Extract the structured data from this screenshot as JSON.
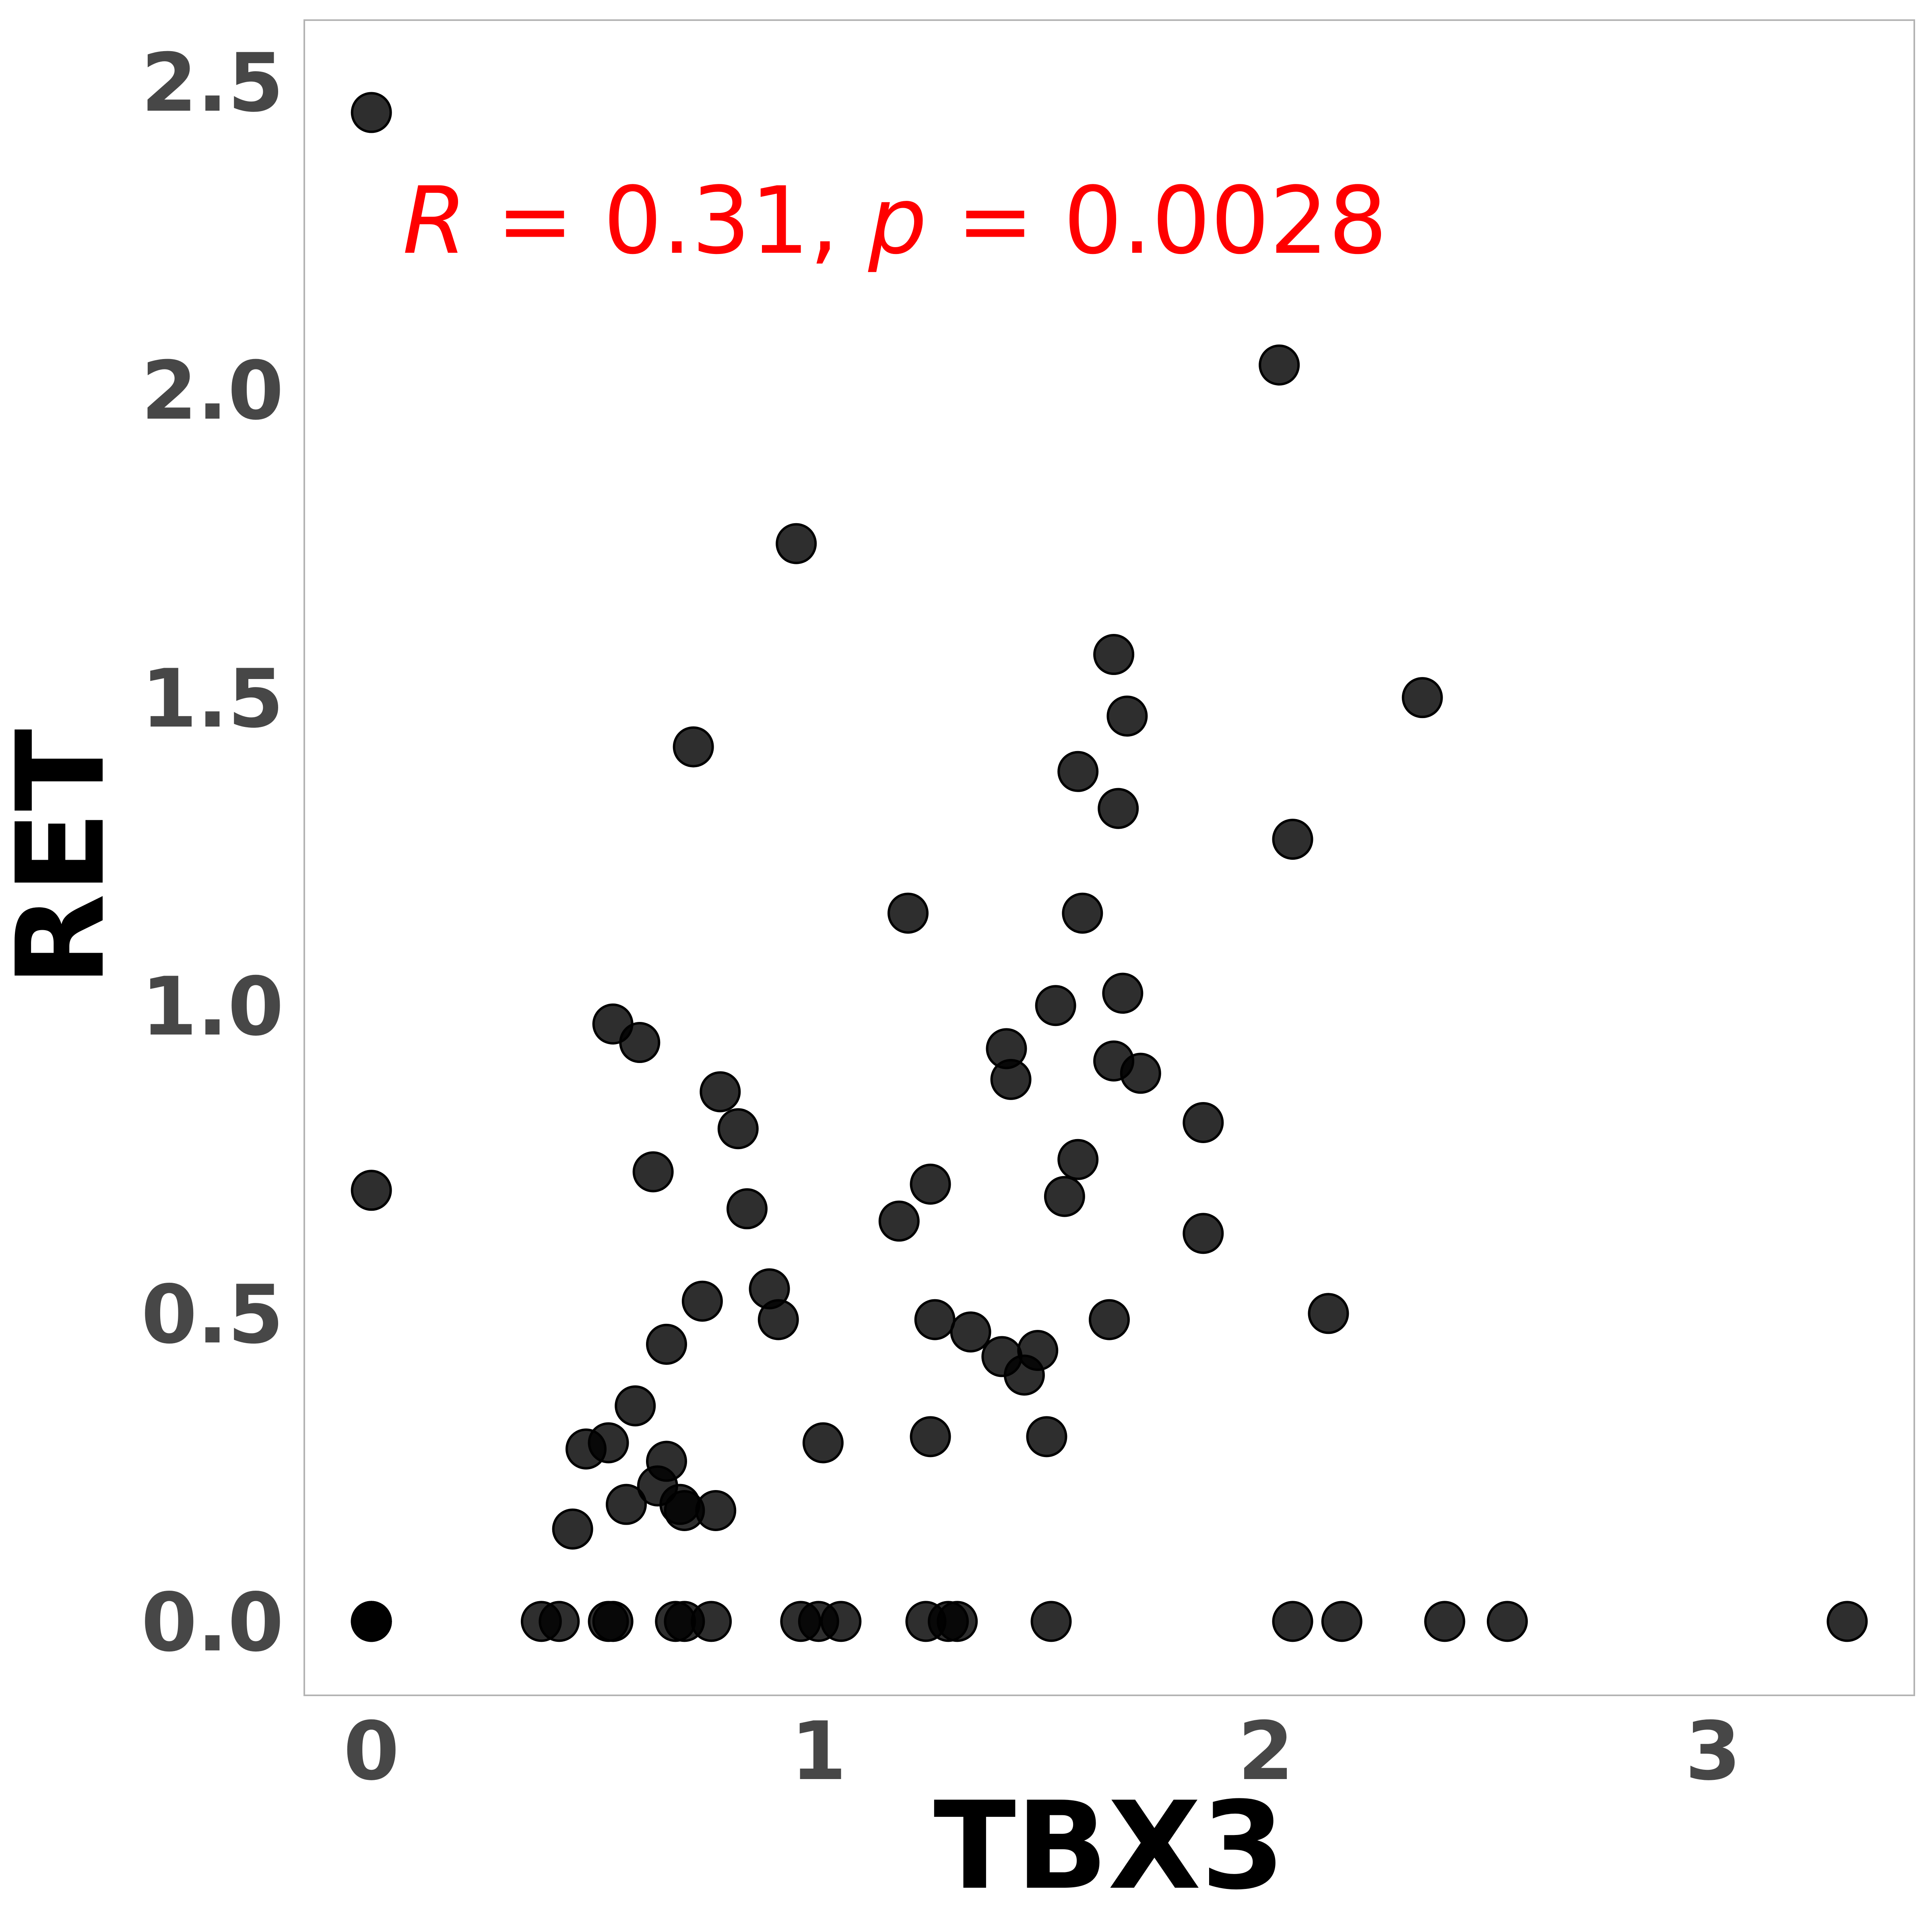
{
  "chart_data": {
    "type": "scatter",
    "xlabel": "TBX3",
    "ylabel": "RET",
    "xlim": [
      -0.15,
      3.45
    ],
    "ylim": [
      -0.12,
      2.6
    ],
    "x_ticks": [
      "0",
      "1",
      "2",
      "3"
    ],
    "y_ticks": [
      "0.0",
      "0.5",
      "1.0",
      "1.5",
      "2.0",
      "2.5"
    ],
    "grid": false,
    "legend": "none",
    "point_color": "#000000",
    "annotation": {
      "r_symbol": "R",
      "r_value": " = 0.31, ",
      "p_symbol": "p",
      "p_value": " = 0.0028",
      "color": "#ff0000"
    },
    "points": [
      [
        0.0,
        2.45
      ],
      [
        0.0,
        0.7
      ],
      [
        0.0,
        0.0
      ],
      [
        0.0,
        0.0
      ],
      [
        0.0,
        0.0
      ],
      [
        0.38,
        0.0
      ],
      [
        0.42,
        0.0
      ],
      [
        0.53,
        0.0
      ],
      [
        0.54,
        0.0
      ],
      [
        0.68,
        0.0
      ],
      [
        0.7,
        0.0
      ],
      [
        0.76,
        0.0
      ],
      [
        0.96,
        0.0
      ],
      [
        1.0,
        0.0
      ],
      [
        1.05,
        0.0
      ],
      [
        1.24,
        0.0
      ],
      [
        1.29,
        0.0
      ],
      [
        1.31,
        0.0
      ],
      [
        1.52,
        0.0
      ],
      [
        2.06,
        0.0
      ],
      [
        2.17,
        0.0
      ],
      [
        2.4,
        0.0
      ],
      [
        2.54,
        0.0
      ],
      [
        3.3,
        0.0
      ],
      [
        0.45,
        0.15
      ],
      [
        0.48,
        0.28
      ],
      [
        0.53,
        0.29
      ],
      [
        0.57,
        0.19
      ],
      [
        0.59,
        0.35
      ],
      [
        0.64,
        0.22
      ],
      [
        0.66,
        0.26
      ],
      [
        0.69,
        0.19
      ],
      [
        0.7,
        0.18
      ],
      [
        0.77,
        0.18
      ],
      [
        0.54,
        0.97
      ],
      [
        0.6,
        0.94
      ],
      [
        0.63,
        0.73
      ],
      [
        0.66,
        0.45
      ],
      [
        0.72,
        1.42
      ],
      [
        0.74,
        0.52
      ],
      [
        0.78,
        0.86
      ],
      [
        0.82,
        0.8
      ],
      [
        0.84,
        0.67
      ],
      [
        0.89,
        0.54
      ],
      [
        0.91,
        0.49
      ],
      [
        0.95,
        1.75
      ],
      [
        1.01,
        0.29
      ],
      [
        1.18,
        0.65
      ],
      [
        1.2,
        1.15
      ],
      [
        1.25,
        0.3
      ],
      [
        1.25,
        0.71
      ],
      [
        1.26,
        0.49
      ],
      [
        1.34,
        0.47
      ],
      [
        1.41,
        0.43
      ],
      [
        1.42,
        0.93
      ],
      [
        1.43,
        0.88
      ],
      [
        1.46,
        0.4
      ],
      [
        1.49,
        0.44
      ],
      [
        1.51,
        0.3
      ],
      [
        1.53,
        1.0
      ],
      [
        1.55,
        0.69
      ],
      [
        1.58,
        0.75
      ],
      [
        1.58,
        1.38
      ],
      [
        1.59,
        1.15
      ],
      [
        1.65,
        0.49
      ],
      [
        1.66,
        1.57
      ],
      [
        1.66,
        0.91
      ],
      [
        1.67,
        1.32
      ],
      [
        1.68,
        1.02
      ],
      [
        1.69,
        1.47
      ],
      [
        1.72,
        0.89
      ],
      [
        1.86,
        0.81
      ],
      [
        1.86,
        0.63
      ],
      [
        2.03,
        2.04
      ],
      [
        2.06,
        1.27
      ],
      [
        2.14,
        0.5
      ],
      [
        2.35,
        1.5
      ]
    ]
  }
}
